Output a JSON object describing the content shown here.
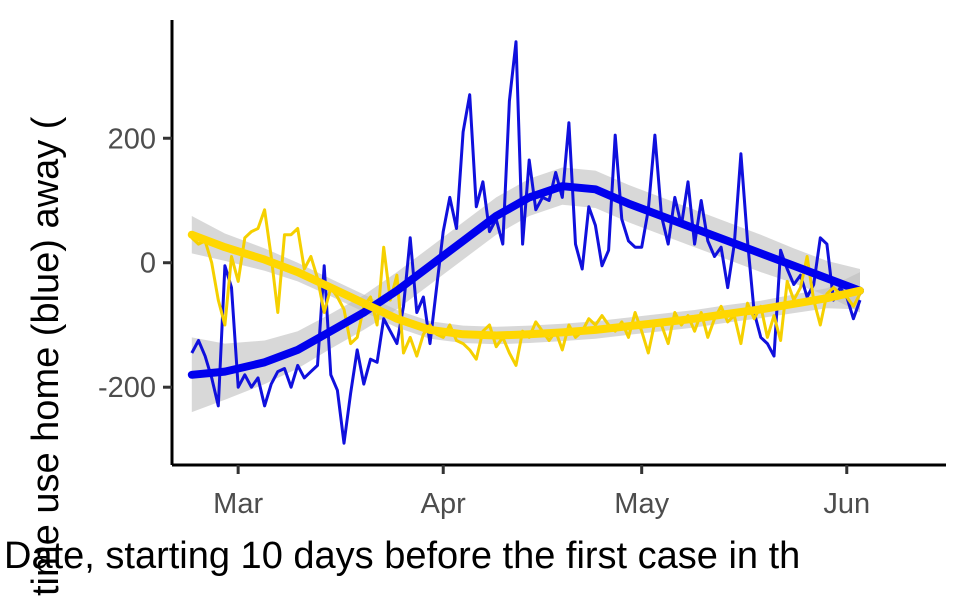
{
  "chart_data": {
    "type": "line",
    "title": "",
    "xlabel": "Date, starting 10 days before the first case in th",
    "ylabel": "time use home (blue) away (",
    "x_ticks": [
      {
        "date": "2020-03-01",
        "label": "Mar"
      },
      {
        "date": "2020-04-01",
        "label": "Apr"
      },
      {
        "date": "2020-05-01",
        "label": "May"
      },
      {
        "date": "2020-06-01",
        "label": "Jun"
      }
    ],
    "y_ticks": [
      {
        "value": -200,
        "label": "-200"
      },
      {
        "value": 0,
        "label": "0"
      },
      {
        "value": 200,
        "label": "200"
      }
    ],
    "xlim": [
      "2020-02-20",
      "2020-06-16"
    ],
    "ylim": [
      -325,
      390
    ],
    "grid": false,
    "legend": "none",
    "colors": {
      "home": "#1010dd",
      "home_smooth": "#0000ee",
      "away": "#f5d000",
      "away_smooth": "#ffd700",
      "band": "#bebebe"
    },
    "series": [
      {
        "color": "home",
        "kind": "raw",
        "points": [
          [
            "2020-02-23",
            -145
          ],
          [
            "2020-02-24",
            -125
          ],
          [
            "2020-02-25",
            -150
          ],
          [
            "2020-02-26",
            -185
          ],
          [
            "2020-02-27",
            -230
          ],
          [
            "2020-02-28",
            -5
          ],
          [
            "2020-02-29",
            -40
          ],
          [
            "2020-03-01",
            -200
          ],
          [
            "2020-03-02",
            -180
          ],
          [
            "2020-03-03",
            -200
          ],
          [
            "2020-03-04",
            -185
          ],
          [
            "2020-03-05",
            -230
          ],
          [
            "2020-03-06",
            -195
          ],
          [
            "2020-03-07",
            -175
          ],
          [
            "2020-03-08",
            -170
          ],
          [
            "2020-03-09",
            -200
          ],
          [
            "2020-03-10",
            -165
          ],
          [
            "2020-03-11",
            -185
          ],
          [
            "2020-03-12",
            -175
          ],
          [
            "2020-03-13",
            -165
          ],
          [
            "2020-03-14",
            -5
          ],
          [
            "2020-03-15",
            -180
          ],
          [
            "2020-03-16",
            -205
          ],
          [
            "2020-03-17",
            -290
          ],
          [
            "2020-03-18",
            -210
          ],
          [
            "2020-03-19",
            -140
          ],
          [
            "2020-03-20",
            -195
          ],
          [
            "2020-03-21",
            -155
          ],
          [
            "2020-03-22",
            -160
          ],
          [
            "2020-03-23",
            -90
          ],
          [
            "2020-03-24",
            -110
          ],
          [
            "2020-03-25",
            -130
          ],
          [
            "2020-03-26",
            -70
          ],
          [
            "2020-03-27",
            40
          ],
          [
            "2020-03-28",
            -80
          ],
          [
            "2020-03-29",
            -55
          ],
          [
            "2020-03-30",
            -130
          ],
          [
            "2020-03-31",
            -40
          ],
          [
            "2020-04-01",
            50
          ],
          [
            "2020-04-02",
            105
          ],
          [
            "2020-04-03",
            55
          ],
          [
            "2020-04-04",
            210
          ],
          [
            "2020-04-05",
            270
          ],
          [
            "2020-04-06",
            90
          ],
          [
            "2020-04-07",
            130
          ],
          [
            "2020-04-08",
            50
          ],
          [
            "2020-04-09",
            70
          ],
          [
            "2020-04-10",
            30
          ],
          [
            "2020-04-11",
            260
          ],
          [
            "2020-04-12",
            355
          ],
          [
            "2020-04-13",
            30
          ],
          [
            "2020-04-14",
            165
          ],
          [
            "2020-04-15",
            85
          ],
          [
            "2020-04-16",
            105
          ],
          [
            "2020-04-17",
            100
          ],
          [
            "2020-04-18",
            145
          ],
          [
            "2020-04-19",
            105
          ],
          [
            "2020-04-20",
            225
          ],
          [
            "2020-04-21",
            30
          ],
          [
            "2020-04-22",
            -10
          ],
          [
            "2020-04-23",
            90
          ],
          [
            "2020-04-24",
            60
          ],
          [
            "2020-04-25",
            -5
          ],
          [
            "2020-04-26",
            20
          ],
          [
            "2020-04-27",
            205
          ],
          [
            "2020-04-28",
            70
          ],
          [
            "2020-04-29",
            35
          ],
          [
            "2020-04-30",
            25
          ],
          [
            "2020-05-01",
            25
          ],
          [
            "2020-05-02",
            85
          ],
          [
            "2020-05-03",
            205
          ],
          [
            "2020-05-04",
            75
          ],
          [
            "2020-05-05",
            30
          ],
          [
            "2020-05-06",
            105
          ],
          [
            "2020-05-07",
            60
          ],
          [
            "2020-05-08",
            130
          ],
          [
            "2020-05-09",
            30
          ],
          [
            "2020-05-10",
            100
          ],
          [
            "2020-05-11",
            35
          ],
          [
            "2020-05-12",
            10
          ],
          [
            "2020-05-13",
            25
          ],
          [
            "2020-05-14",
            -40
          ],
          [
            "2020-05-15",
            30
          ],
          [
            "2020-05-16",
            175
          ],
          [
            "2020-05-17",
            35
          ],
          [
            "2020-05-18",
            -80
          ],
          [
            "2020-05-19",
            -120
          ],
          [
            "2020-05-20",
            -130
          ],
          [
            "2020-05-21",
            -150
          ],
          [
            "2020-05-22",
            20
          ],
          [
            "2020-05-23",
            -10
          ],
          [
            "2020-05-24",
            -35
          ],
          [
            "2020-05-25",
            -20
          ],
          [
            "2020-05-26",
            -55
          ],
          [
            "2020-05-27",
            -35
          ],
          [
            "2020-05-28",
            40
          ],
          [
            "2020-05-29",
            30
          ],
          [
            "2020-05-30",
            -60
          ],
          [
            "2020-05-31",
            -40
          ],
          [
            "2020-06-01",
            -55
          ],
          [
            "2020-06-02",
            -90
          ],
          [
            "2020-06-03",
            -60
          ]
        ]
      },
      {
        "color": "away",
        "kind": "raw",
        "points": [
          [
            "2020-02-23",
            40
          ],
          [
            "2020-02-24",
            30
          ],
          [
            "2020-02-25",
            35
          ],
          [
            "2020-02-26",
            0
          ],
          [
            "2020-02-27",
            -60
          ],
          [
            "2020-02-28",
            -100
          ],
          [
            "2020-02-29",
            10
          ],
          [
            "2020-03-01",
            -30
          ],
          [
            "2020-03-02",
            40
          ],
          [
            "2020-03-03",
            50
          ],
          [
            "2020-03-04",
            55
          ],
          [
            "2020-03-05",
            85
          ],
          [
            "2020-03-06",
            10
          ],
          [
            "2020-03-07",
            -80
          ],
          [
            "2020-03-08",
            45
          ],
          [
            "2020-03-09",
            45
          ],
          [
            "2020-03-10",
            55
          ],
          [
            "2020-03-11",
            -10
          ],
          [
            "2020-03-12",
            10
          ],
          [
            "2020-03-13",
            -25
          ],
          [
            "2020-03-14",
            -80
          ],
          [
            "2020-03-15",
            -40
          ],
          [
            "2020-03-16",
            -55
          ],
          [
            "2020-03-17",
            -75
          ],
          [
            "2020-03-18",
            -130
          ],
          [
            "2020-03-19",
            -120
          ],
          [
            "2020-03-20",
            -70
          ],
          [
            "2020-03-21",
            -55
          ],
          [
            "2020-03-22",
            -100
          ],
          [
            "2020-03-23",
            25
          ],
          [
            "2020-03-24",
            -60
          ],
          [
            "2020-03-25",
            -20
          ],
          [
            "2020-03-26",
            -145
          ],
          [
            "2020-03-27",
            -120
          ],
          [
            "2020-03-28",
            -150
          ],
          [
            "2020-03-29",
            -115
          ],
          [
            "2020-03-30",
            -100
          ],
          [
            "2020-03-31",
            -115
          ],
          [
            "2020-04-01",
            -120
          ],
          [
            "2020-04-02",
            -100
          ],
          [
            "2020-04-03",
            -125
          ],
          [
            "2020-04-04",
            -130
          ],
          [
            "2020-04-05",
            -140
          ],
          [
            "2020-04-06",
            -155
          ],
          [
            "2020-04-07",
            -110
          ],
          [
            "2020-04-08",
            -100
          ],
          [
            "2020-04-09",
            -135
          ],
          [
            "2020-04-10",
            -120
          ],
          [
            "2020-04-11",
            -145
          ],
          [
            "2020-04-12",
            -165
          ],
          [
            "2020-04-13",
            -110
          ],
          [
            "2020-04-14",
            -120
          ],
          [
            "2020-04-15",
            -95
          ],
          [
            "2020-04-16",
            -110
          ],
          [
            "2020-04-17",
            -125
          ],
          [
            "2020-04-18",
            -110
          ],
          [
            "2020-04-19",
            -140
          ],
          [
            "2020-04-20",
            -100
          ],
          [
            "2020-04-21",
            -120
          ],
          [
            "2020-04-22",
            -110
          ],
          [
            "2020-04-23",
            -90
          ],
          [
            "2020-04-24",
            -100
          ],
          [
            "2020-04-25",
            -85
          ],
          [
            "2020-04-26",
            -100
          ],
          [
            "2020-04-27",
            -110
          ],
          [
            "2020-04-28",
            -95
          ],
          [
            "2020-04-29",
            -120
          ],
          [
            "2020-04-30",
            -80
          ],
          [
            "2020-05-01",
            -110
          ],
          [
            "2020-05-02",
            -145
          ],
          [
            "2020-05-03",
            -95
          ],
          [
            "2020-05-04",
            -100
          ],
          [
            "2020-05-05",
            -130
          ],
          [
            "2020-05-06",
            -80
          ],
          [
            "2020-05-07",
            -100
          ],
          [
            "2020-05-08",
            -85
          ],
          [
            "2020-05-09",
            -110
          ],
          [
            "2020-05-10",
            -80
          ],
          [
            "2020-05-11",
            -120
          ],
          [
            "2020-05-12",
            -90
          ],
          [
            "2020-05-13",
            -70
          ],
          [
            "2020-05-14",
            -95
          ],
          [
            "2020-05-15",
            -85
          ],
          [
            "2020-05-16",
            -130
          ],
          [
            "2020-05-17",
            -65
          ],
          [
            "2020-05-18",
            -90
          ],
          [
            "2020-05-19",
            -70
          ],
          [
            "2020-05-20",
            -120
          ],
          [
            "2020-05-21",
            -85
          ],
          [
            "2020-05-22",
            -125
          ],
          [
            "2020-05-23",
            -30
          ],
          [
            "2020-05-24",
            -60
          ],
          [
            "2020-05-25",
            -40
          ],
          [
            "2020-05-26",
            10
          ],
          [
            "2020-05-27",
            -60
          ],
          [
            "2020-05-28",
            -100
          ],
          [
            "2020-05-29",
            -50
          ],
          [
            "2020-05-30",
            -40
          ],
          [
            "2020-05-31",
            -50
          ],
          [
            "2020-06-01",
            -55
          ],
          [
            "2020-06-02",
            -70
          ],
          [
            "2020-06-03",
            -50
          ]
        ]
      },
      {
        "color": "home_smooth",
        "kind": "smooth",
        "points": [
          [
            "2020-02-23",
            -180
          ],
          [
            "2020-02-28",
            -175
          ],
          [
            "2020-03-05",
            -160
          ],
          [
            "2020-03-10",
            -140
          ],
          [
            "2020-03-15",
            -110
          ],
          [
            "2020-03-20",
            -80
          ],
          [
            "2020-03-25",
            -45
          ],
          [
            "2020-03-30",
            -5
          ],
          [
            "2020-04-04",
            35
          ],
          [
            "2020-04-09",
            75
          ],
          [
            "2020-04-14",
            105
          ],
          [
            "2020-04-19",
            123
          ],
          [
            "2020-04-24",
            118
          ],
          [
            "2020-04-29",
            95
          ],
          [
            "2020-05-04",
            75
          ],
          [
            "2020-05-09",
            55
          ],
          [
            "2020-05-14",
            35
          ],
          [
            "2020-05-19",
            15
          ],
          [
            "2020-05-24",
            -5
          ],
          [
            "2020-05-29",
            -25
          ],
          [
            "2020-06-03",
            -45
          ]
        ],
        "band_halfwidth": [
          60,
          45,
          35,
          30,
          28,
          28,
          30,
          30,
          30,
          30,
          30,
          30,
          30,
          30,
          30,
          30,
          30,
          30,
          28,
          28,
          35
        ]
      },
      {
        "color": "away_smooth",
        "kind": "smooth",
        "points": [
          [
            "2020-02-23",
            45
          ],
          [
            "2020-02-28",
            25
          ],
          [
            "2020-03-05",
            5
          ],
          [
            "2020-03-10",
            -15
          ],
          [
            "2020-03-15",
            -40
          ],
          [
            "2020-03-20",
            -65
          ],
          [
            "2020-03-25",
            -90
          ],
          [
            "2020-03-30",
            -108
          ],
          [
            "2020-04-04",
            -115
          ],
          [
            "2020-04-09",
            -117
          ],
          [
            "2020-04-14",
            -115
          ],
          [
            "2020-04-19",
            -112
          ],
          [
            "2020-04-24",
            -108
          ],
          [
            "2020-04-29",
            -102
          ],
          [
            "2020-05-04",
            -96
          ],
          [
            "2020-05-09",
            -90
          ],
          [
            "2020-05-14",
            -82
          ],
          [
            "2020-05-19",
            -75
          ],
          [
            "2020-05-24",
            -66
          ],
          [
            "2020-05-29",
            -57
          ],
          [
            "2020-06-03",
            -45
          ]
        ],
        "band_halfwidth": [
          30,
          22,
          18,
          15,
          14,
          14,
          14,
          14,
          14,
          14,
          14,
          14,
          14,
          14,
          14,
          14,
          14,
          14,
          15,
          16,
          30
        ]
      }
    ]
  }
}
